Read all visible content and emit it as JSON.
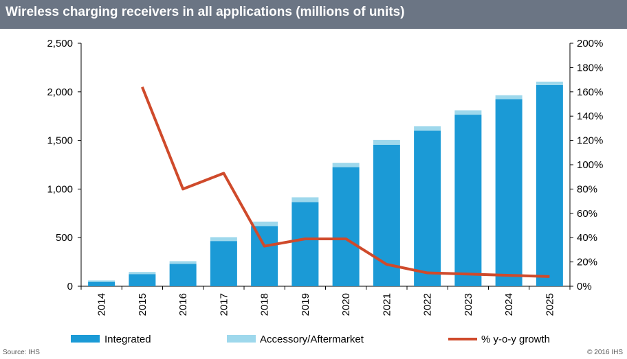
{
  "header": {
    "title": "Wireless charging receivers in all applications (millions of units)"
  },
  "footer": {
    "source": "Source: IHS",
    "copyright": "© 2016 IHS"
  },
  "colors": {
    "integrated": "#1b9ad6",
    "accessory": "#9ed8ec",
    "growth": "#cf4a2b",
    "header_bg": "#6b7584"
  },
  "chart_data": {
    "type": "bar",
    "title": "Wireless charging receivers in all applications (millions of units)",
    "categories": [
      "2014",
      "2015",
      "2016",
      "2017",
      "2018",
      "2019",
      "2020",
      "2021",
      "2022",
      "2023",
      "2024",
      "2025"
    ],
    "series": [
      {
        "name": "Integrated",
        "type": "stacked-bar",
        "axis": "left",
        "values": [
          45,
          125,
          230,
          465,
          620,
          865,
          1225,
          1455,
          1600,
          1765,
          1925,
          2070
        ]
      },
      {
        "name": "Accessory/Aftermarket",
        "type": "stacked-bar",
        "axis": "left",
        "values": [
          15,
          22,
          28,
          40,
          45,
          50,
          45,
          50,
          45,
          45,
          40,
          35
        ]
      },
      {
        "name": "% y-o-y growth",
        "type": "line",
        "axis": "right",
        "values": [
          null,
          164,
          80,
          93,
          33,
          39,
          39,
          18,
          11,
          10,
          9,
          8
        ]
      }
    ],
    "left_axis": {
      "ticks": [
        "0",
        "500",
        "1,000",
        "1,500",
        "2,000",
        "2,500"
      ],
      "ylim": [
        0,
        2500
      ]
    },
    "right_axis": {
      "ticks": [
        "0%",
        "20%",
        "40%",
        "60%",
        "80%",
        "100%",
        "120%",
        "140%",
        "160%",
        "180%",
        "200%"
      ],
      "ylim": [
        0,
        200
      ]
    },
    "legend": {
      "placement": "bottom",
      "items": [
        "Integrated",
        "Accessory/Aftermarket",
        "% y-o-y growth"
      ]
    },
    "grid": false
  }
}
